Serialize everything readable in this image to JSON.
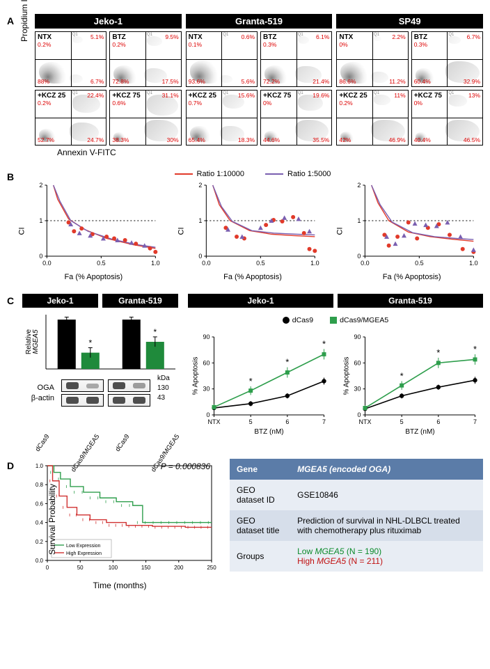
{
  "colors": {
    "header_bg": "#000000",
    "header_fg": "#ffffff",
    "accent_red": "#d00000",
    "ratio_red": "#e13a2a",
    "ratio_purple": "#7a5fb0",
    "dcas9_black": "#000000",
    "dcas9_mgea5": "#2e9e4c",
    "km_low": "#2e9e4c",
    "km_high": "#d03030",
    "table_header_bg": "#5b7ca8",
    "table_row_light": "#e8edf4",
    "table_row_dark": "#d6deea"
  },
  "typography": {
    "base_font": "Arial",
    "base_size_pt": 8.5,
    "panel_letter_size_pt": 11,
    "header_size_pt": 10
  },
  "panelA": {
    "y_axis": "Propidium Iodide",
    "x_axis": "Annexin V-FITC",
    "cell_lines": [
      "Jeko-1",
      "Granta-519",
      "SP49"
    ],
    "conditions": [
      [
        "NTX",
        "BTZ"
      ],
      [
        "+KCZ 25",
        "+KCZ 75"
      ]
    ],
    "quadrant_suffix": "%",
    "plots": {
      "Jeko-1": {
        "NTX": {
          "q1": 0.2,
          "q2": 5.1,
          "q3": 88.0,
          "q4": 6.7
        },
        "BTZ": {
          "q1": 0.2,
          "q2": 9.5,
          "q3": 72.8,
          "q4": 17.5
        },
        "+KCZ 25": {
          "q1": 0.2,
          "q2": 22.4,
          "q3": 52.7,
          "q4": 24.7
        },
        "+KCZ 75": {
          "q1": 0.6,
          "q2": 31.1,
          "q3": 38.3,
          "q4": 30.0
        }
      },
      "Granta-519": {
        "NTX": {
          "q1": 0.1,
          "q2": 0.6,
          "q3": 93.6,
          "q4": 5.6
        },
        "BTZ": {
          "q1": 0.3,
          "q2": 6.1,
          "q3": 72.2,
          "q4": 21.4
        },
        "+KCZ 25": {
          "q1": 0.7,
          "q2": 15.6,
          "q3": 65.4,
          "q4": 18.3
        },
        "+KCZ 75": {
          "q1": 0.0,
          "q2": 19.6,
          "q3": 44.6,
          "q4": 35.5
        }
      },
      "SP49": {
        "NTX": {
          "q1": 0.0,
          "q2": 2.2,
          "q3": 86.6,
          "q4": 11.2
        },
        "BTZ": {
          "q1": 0.3,
          "q2": 6.7,
          "q3": 60.4,
          "q4": 32.9
        },
        "+KCZ 25": {
          "q1": 0.2,
          "q2": 11.0,
          "q3": 42.0,
          "q4": 46.9
        },
        "+KCZ 75": {
          "q1": 0.0,
          "q2": 13.0,
          "q3": 40.4,
          "q4": 46.5
        }
      }
    }
  },
  "panelB": {
    "legend": [
      {
        "label": "Ratio 1:10000",
        "color": "#e13a2a"
      },
      {
        "label": "Ratio 1:5000",
        "color": "#7a5fb0"
      }
    ],
    "y_label": "CI",
    "x_label": "Fa (% Apoptosis)",
    "ylim": [
      0,
      2
    ],
    "yticks": [
      0,
      1,
      2
    ],
    "xlim": [
      0.0,
      1.0
    ],
    "xticks": [
      0.0,
      0.5,
      1.0
    ],
    "hline": 1,
    "charts": [
      {
        "curves": {
          "red": [
            [
              0.06,
              2.0
            ],
            [
              0.1,
              1.6
            ],
            [
              0.2,
              1.05
            ],
            [
              0.35,
              0.75
            ],
            [
              0.55,
              0.5
            ],
            [
              0.8,
              0.32
            ],
            [
              1.0,
              0.22
            ]
          ],
          "purple": [
            [
              0.06,
              2.0
            ],
            [
              0.12,
              1.55
            ],
            [
              0.22,
              1.0
            ],
            [
              0.38,
              0.7
            ],
            [
              0.6,
              0.48
            ],
            [
              0.82,
              0.33
            ],
            [
              1.0,
              0.25
            ]
          ]
        },
        "points": {
          "red": [
            [
              0.2,
              0.95
            ],
            [
              0.25,
              0.7
            ],
            [
              0.32,
              0.78
            ],
            [
              0.42,
              0.62
            ],
            [
              0.55,
              0.55
            ],
            [
              0.62,
              0.5
            ],
            [
              0.72,
              0.45
            ],
            [
              0.82,
              0.35
            ],
            [
              0.95,
              0.22
            ],
            [
              1.0,
              0.12
            ]
          ],
          "purple": [
            [
              0.22,
              0.9
            ],
            [
              0.3,
              0.65
            ],
            [
              0.4,
              0.58
            ],
            [
              0.52,
              0.5
            ],
            [
              0.65,
              0.45
            ],
            [
              0.78,
              0.38
            ],
            [
              0.9,
              0.3
            ]
          ]
        }
      },
      {
        "curves": {
          "red": [
            [
              0.06,
              2.0
            ],
            [
              0.12,
              1.45
            ],
            [
              0.22,
              1.0
            ],
            [
              0.4,
              0.72
            ],
            [
              0.6,
              0.62
            ],
            [
              0.8,
              0.58
            ],
            [
              1.0,
              0.55
            ]
          ],
          "purple": [
            [
              0.06,
              2.0
            ],
            [
              0.14,
              1.4
            ],
            [
              0.24,
              0.98
            ],
            [
              0.42,
              0.72
            ],
            [
              0.62,
              0.65
            ],
            [
              0.82,
              0.62
            ],
            [
              1.0,
              0.6
            ]
          ]
        },
        "points": {
          "red": [
            [
              0.18,
              0.8
            ],
            [
              0.28,
              0.55
            ],
            [
              0.35,
              0.5
            ],
            [
              0.55,
              0.88
            ],
            [
              0.62,
              1.02
            ],
            [
              0.7,
              0.98
            ],
            [
              0.8,
              1.1
            ],
            [
              0.9,
              0.65
            ],
            [
              0.95,
              0.2
            ],
            [
              1.0,
              0.15
            ]
          ],
          "purple": [
            [
              0.2,
              0.75
            ],
            [
              0.33,
              0.55
            ],
            [
              0.5,
              0.8
            ],
            [
              0.6,
              1.0
            ],
            [
              0.72,
              1.08
            ],
            [
              0.85,
              1.05
            ],
            [
              0.95,
              0.7
            ]
          ]
        }
      },
      {
        "curves": {
          "red": [
            [
              0.06,
              2.0
            ],
            [
              0.12,
              1.5
            ],
            [
              0.22,
              1.0
            ],
            [
              0.4,
              0.68
            ],
            [
              0.6,
              0.55
            ],
            [
              0.8,
              0.48
            ],
            [
              1.0,
              0.42
            ]
          ],
          "purple": [
            [
              0.06,
              2.0
            ],
            [
              0.14,
              1.45
            ],
            [
              0.25,
              0.96
            ],
            [
              0.44,
              0.66
            ],
            [
              0.64,
              0.55
            ],
            [
              0.84,
              0.5
            ],
            [
              1.0,
              0.47
            ]
          ]
        },
        "points": {
          "red": [
            [
              0.18,
              0.6
            ],
            [
              0.22,
              0.3
            ],
            [
              0.3,
              0.55
            ],
            [
              0.4,
              0.95
            ],
            [
              0.48,
              0.5
            ],
            [
              0.58,
              0.8
            ],
            [
              0.68,
              0.9
            ],
            [
              0.78,
              0.6
            ],
            [
              0.9,
              0.2
            ],
            [
              1.0,
              0.12
            ]
          ],
          "purple": [
            [
              0.2,
              0.55
            ],
            [
              0.28,
              0.35
            ],
            [
              0.36,
              0.58
            ],
            [
              0.46,
              0.92
            ],
            [
              0.56,
              0.88
            ],
            [
              0.66,
              0.85
            ],
            [
              0.76,
              0.95
            ],
            [
              0.88,
              0.55
            ],
            [
              1.0,
              0.18
            ]
          ]
        }
      }
    ]
  },
  "panelC": {
    "left": {
      "y_label": "Relative MGEA5",
      "y_label_italic_part": "MGEA5",
      "cell_lines": [
        "Jeko-1",
        "Granta-519"
      ],
      "conditions": [
        "dCas9",
        "dCas9/MGEA5"
      ],
      "ylim": [
        0,
        1.1
      ],
      "bars": {
        "Jeko-1": {
          "dCas9": {
            "mean": 1.0,
            "err": 0.05,
            "sig": false
          },
          "dCas9/MGEA5": {
            "mean": 0.33,
            "err": 0.1,
            "sig": true
          }
        },
        "Granta-519": {
          "dCas9": {
            "mean": 1.0,
            "err": 0.05,
            "sig": false
          },
          "dCas9/MGEA5": {
            "mean": 0.55,
            "err": 0.1,
            "sig": true
          }
        }
      },
      "bar_colors": {
        "dCas9": "#000000",
        "dCas9/MGEA5": "#1f8a3b"
      },
      "blots": {
        "rows": [
          {
            "label": "OGA",
            "kda": 130,
            "intensity": {
              "Jeko-1": [
                1.0,
                0.25
              ],
              "Granta-519": [
                1.0,
                0.35
              ]
            }
          },
          {
            "label": "β-actin",
            "kda": 43,
            "intensity": {
              "Jeko-1": [
                1.0,
                1.0
              ],
              "Granta-519": [
                1.0,
                1.0
              ]
            }
          }
        ]
      },
      "kda_label": "kDa"
    },
    "right": {
      "cell_lines": [
        "Jeko-1",
        "Granta-519"
      ],
      "legend": [
        {
          "label": "dCas9",
          "marker": "circle",
          "color": "#000000"
        },
        {
          "label": "dCas9/MGEA5",
          "marker": "square",
          "color": "#2e9e4c"
        }
      ],
      "y_label": "% Apoptosis",
      "x_label": "BTZ (nM)",
      "ylim": [
        0,
        90
      ],
      "yticks": [
        0,
        30,
        60,
        90
      ],
      "x_categories": [
        "NTX",
        "5",
        "6",
        "7"
      ],
      "series": {
        "Jeko-1": {
          "dCas9": {
            "y": [
              8,
              13,
              22,
              39
            ],
            "err": [
              2,
              3,
              3,
              4
            ],
            "sig": [
              false,
              false,
              false,
              false
            ]
          },
          "dCas9/MGEA5": {
            "y": [
              9,
              28,
              49,
              70
            ],
            "err": [
              3,
              5,
              6,
              6
            ],
            "sig": [
              false,
              true,
              true,
              true
            ]
          }
        },
        "Granta-519": {
          "dCas9": {
            "y": [
              7,
              22,
              32,
              40
            ],
            "err": [
              2,
              3,
              3,
              4
            ],
            "sig": [
              false,
              false,
              false,
              false
            ]
          },
          "dCas9/MGEA5": {
            "y": [
              8,
              34,
              60,
              64
            ],
            "err": [
              3,
              5,
              6,
              6
            ],
            "sig": [
              false,
              true,
              true,
              true
            ]
          }
        }
      }
    }
  },
  "panelD": {
    "km": {
      "p_value": "P = 0.000836",
      "y_label": "Survival Probability",
      "x_label": "Time (months)",
      "xlim": [
        0,
        250
      ],
      "xticks": [
        0,
        50,
        100,
        150,
        200,
        250
      ],
      "ylim": [
        0,
        1.0
      ],
      "yticks": [
        0.0,
        0.2,
        0.4,
        0.6,
        0.8,
        1.0
      ],
      "legend": [
        {
          "label": "Low Expression",
          "color": "#2e9e4c"
        },
        {
          "label": "High Expression",
          "color": "#d03030"
        }
      ],
      "curves": {
        "low": [
          [
            0,
            1.0
          ],
          [
            10,
            0.93
          ],
          [
            20,
            0.86
          ],
          [
            35,
            0.78
          ],
          [
            55,
            0.72
          ],
          [
            80,
            0.66
          ],
          [
            105,
            0.62
          ],
          [
            130,
            0.58
          ],
          [
            145,
            0.4
          ],
          [
            200,
            0.4
          ],
          [
            250,
            0.4
          ]
        ],
        "high": [
          [
            0,
            1.0
          ],
          [
            8,
            0.84
          ],
          [
            18,
            0.68
          ],
          [
            30,
            0.56
          ],
          [
            45,
            0.48
          ],
          [
            65,
            0.43
          ],
          [
            90,
            0.4
          ],
          [
            120,
            0.37
          ],
          [
            160,
            0.36
          ],
          [
            210,
            0.35
          ],
          [
            250,
            0.35
          ]
        ]
      }
    },
    "table": {
      "header": [
        "Gene",
        "MGEA5 (encoded OGA)"
      ],
      "rows": [
        [
          "GEO dataset ID",
          "GSE10846"
        ],
        [
          "GEO dataset title",
          "Prediction of survival in NHL-DLBCL treated with chemotherapy plus rituximab"
        ],
        [
          "Groups",
          {
            "low": "Low MGEA5 (N = 190)",
            "high": "High MGEA5 (N = 211)"
          }
        ]
      ]
    }
  }
}
